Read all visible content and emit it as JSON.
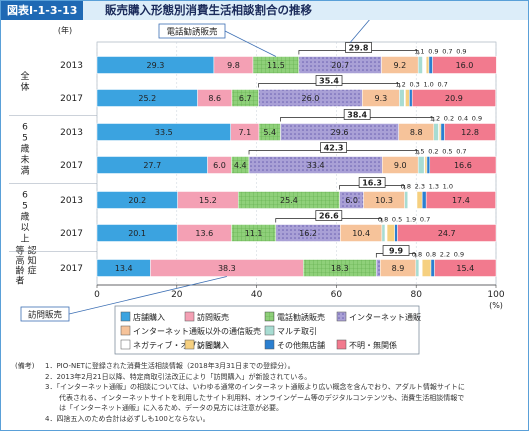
{
  "figure": {
    "label": "図表Ⅰ-1-3-13",
    "title": "販売購入形態別消費生活相談割合の推移"
  },
  "chart_data": {
    "type": "bar",
    "orientation": "horizontal",
    "stacked": true,
    "year_axis_label": "(年)",
    "x_unit": "(%)",
    "xlim": [
      0,
      100
    ],
    "x_ticks": [
      "0",
      "20",
      "40",
      "60",
      "80",
      "100"
    ],
    "groups": [
      {
        "label": "全体",
        "rows": [
          "2013",
          "2017"
        ]
      },
      {
        "label": "65歳未満",
        "rows": [
          "2013",
          "2017"
        ]
      },
      {
        "label": "65歳以上",
        "rows": [
          "2013",
          "2017"
        ]
      },
      {
        "label": "認知症等高齢者",
        "rows": [
          "2017"
        ]
      }
    ],
    "categories": [
      "全体 2013",
      "全体 2017",
      "65歳未満 2013",
      "65歳未満 2017",
      "65歳以上 2013",
      "65歳以上 2017",
      "認知症等高齢者 2017"
    ],
    "series": [
      {
        "name": "店舗購入",
        "color": "#3ba3e0",
        "pattern": "solid",
        "values": [
          29.3,
          25.2,
          33.5,
          27.7,
          20.2,
          20.1,
          13.4
        ]
      },
      {
        "name": "訪問販売",
        "color": "#f4a0b4",
        "pattern": "solid",
        "values": [
          9.8,
          8.6,
          7.1,
          6.0,
          15.2,
          13.6,
          38.3
        ]
      },
      {
        "name": "電話勧誘販売",
        "color": "#8fd07a",
        "pattern": "grid",
        "values": [
          11.5,
          6.7,
          5.4,
          4.4,
          25.4,
          11.1,
          18.3
        ]
      },
      {
        "name": "インターネット通販",
        "color": "#a9a0d6",
        "pattern": "dots",
        "values": [
          20.7,
          26.0,
          29.6,
          33.4,
          6.0,
          16.2,
          1.0
        ]
      },
      {
        "name": "インターネット通販以外の通信販売",
        "color": "#f6c39a",
        "pattern": "solid",
        "values": [
          9.2,
          9.3,
          8.8,
          9.0,
          10.3,
          10.4,
          8.9
        ]
      },
      {
        "name": "マルチ取引",
        "color": "#a8dcd2",
        "pattern": "solid",
        "values": [
          1.1,
          1.2,
          1.2,
          1.5,
          0.8,
          0.8,
          0.8
        ]
      },
      {
        "name": "ネガティブ・オプション",
        "color": "#ffffff",
        "pattern": "solid",
        "values": [
          0.9,
          0.3,
          0.2,
          0.2,
          2.3,
          0.5,
          0.8
        ]
      },
      {
        "name": "訪問購入",
        "color": "#f6d080",
        "pattern": "solid",
        "values": [
          0.7,
          1.0,
          0.4,
          0.5,
          1.3,
          1.9,
          2.2
        ]
      },
      {
        "name": "その他無店舗",
        "color": "#2b7fd0",
        "pattern": "solid",
        "values": [
          0.9,
          0.7,
          0.9,
          0.7,
          1.0,
          0.7,
          0.9
        ]
      },
      {
        "name": "不明・無関係",
        "color": "#f27a8e",
        "pattern": "solid",
        "values": [
          16.0,
          20.9,
          12.8,
          16.6,
          17.4,
          24.7,
          15.4
        ]
      }
    ],
    "small_value_annotations": [
      [
        "1.1",
        "0.9",
        "0.7",
        "0.9"
      ],
      [
        "1.2",
        "0.3",
        "1.0",
        "0.7"
      ],
      [
        "1.2",
        "0.2",
        "0.4",
        "0.9"
      ],
      [
        "1.5",
        "0.2",
        "0.5",
        "0.7"
      ],
      [
        "0.8",
        "2.3",
        "1.3",
        "1.0"
      ],
      [
        "0.8",
        "0.5",
        "1.9",
        "0.7"
      ],
      [
        "0.8",
        "0.8",
        "2.2",
        "0.9"
      ]
    ],
    "internet_totals": [
      "29.8",
      "35.4",
      "38.4",
      "42.3",
      "16.3",
      "26.6",
      "9.9"
    ],
    "internet_totals_note": "インターネット通販とインターネット通販以外の通信販売の合計",
    "callouts": [
      {
        "text": "電話勧誘販売",
        "row": 0,
        "series": 2
      },
      {
        "text": "インターネット通販",
        "row": 0,
        "series": 3
      },
      {
        "text": "訪問販売",
        "row": 6,
        "series": 1
      }
    ],
    "legend_placement": "bottom-center"
  },
  "notes": {
    "head": "(備考)",
    "items": [
      "1．PIO-NETに登録された消費生活相談情報（2018年3月31日までの登録分）。",
      "2．2013年2月21日以降、特定商取引法改正により「訪問購入」が新設されている。",
      "3．「インターネット通販」の相談については、いわゆる通常のインターネット通販より広い概念を含んでおり、アダルト情報サイトに",
      "　　代表される、インターネットサイトを利用したサイト利用料、オンラインゲーム等のデジタルコンテンツも、消費生活相談情報で",
      "　　は「インターネット通販」に入るため、データの見方には注意が必要。",
      "4．四捨五入のため合計は必ずしも100とならない。"
    ]
  }
}
